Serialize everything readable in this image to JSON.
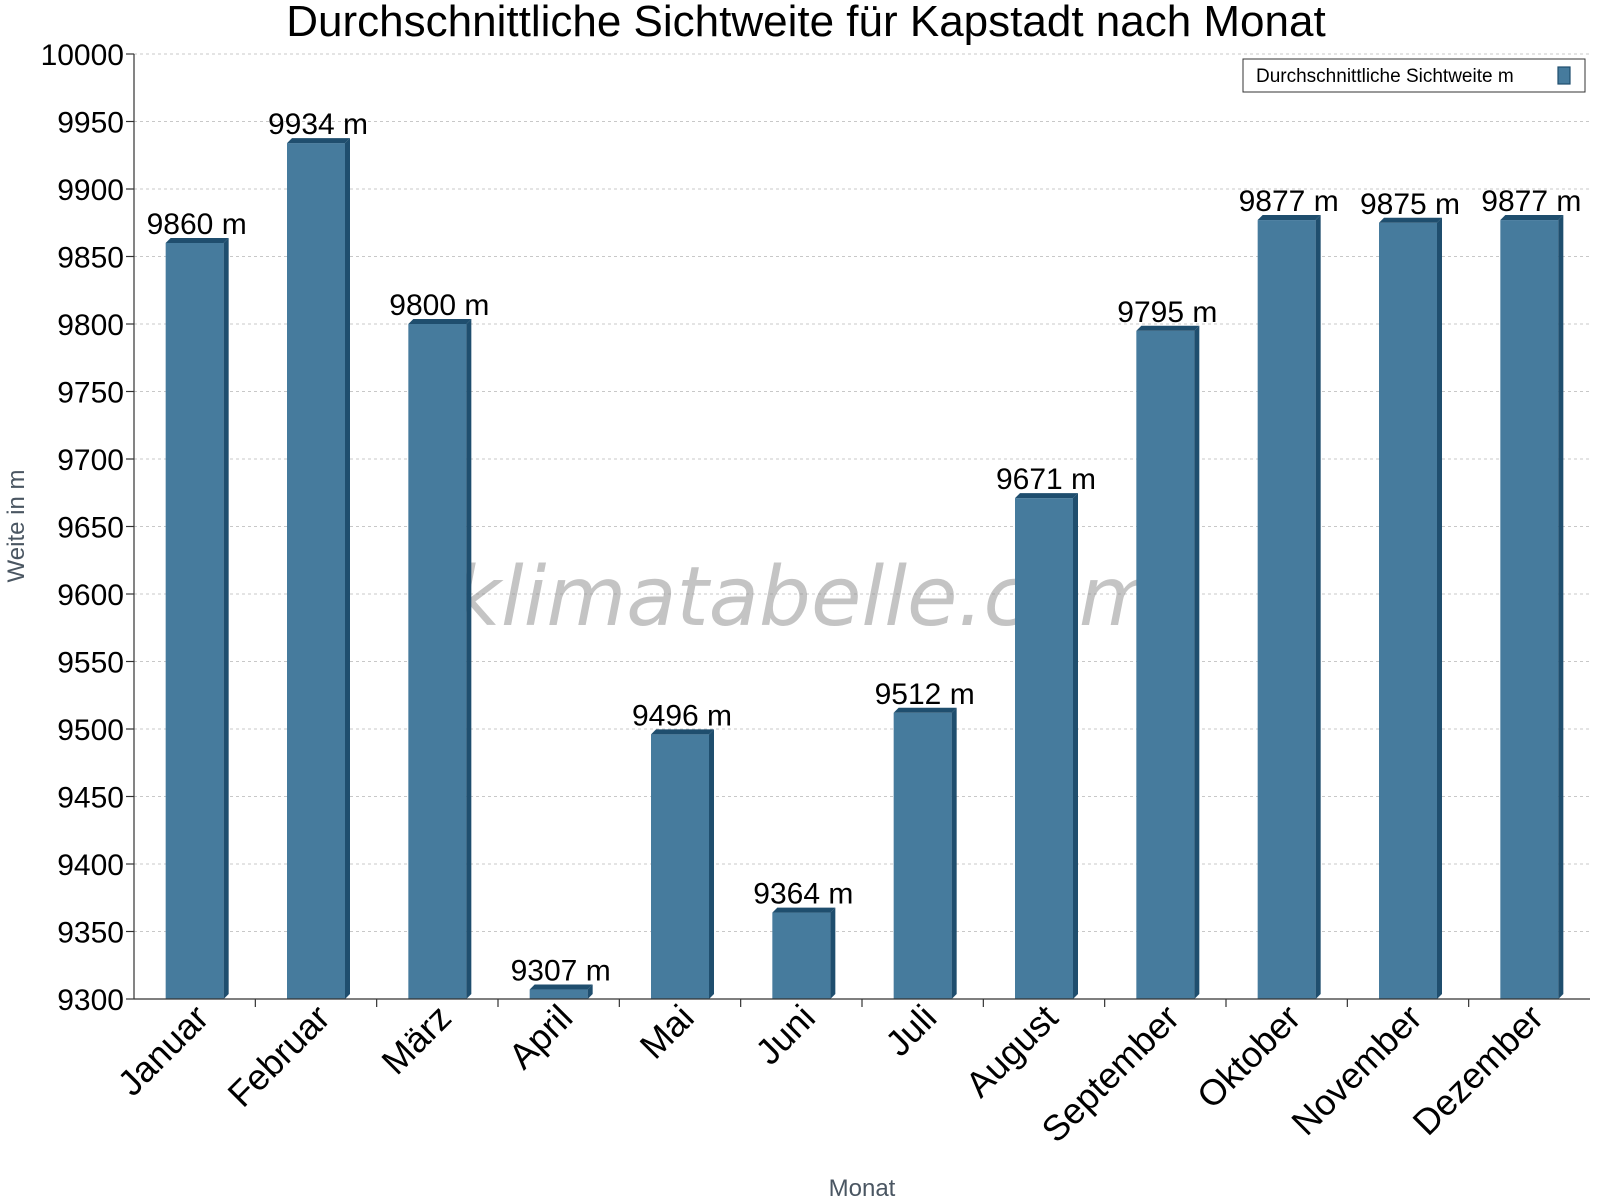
{
  "chart_data": {
    "type": "bar",
    "title": "Durchschnittliche Sichtweite für Kapstadt nach Monat",
    "xlabel": "Monat",
    "ylabel": "Weite in m",
    "categories": [
      "Januar",
      "Februar",
      "März",
      "April",
      "Mai",
      "Juni",
      "Juli",
      "August",
      "September",
      "Oktober",
      "November",
      "Dezember"
    ],
    "series": [
      {
        "name": "Durchschnittliche Sichtweite m",
        "values": [
          9860,
          9934,
          9800,
          9307,
          9496,
          9364,
          9512,
          9671,
          9795,
          9877,
          9875,
          9877
        ],
        "labels": [
          "9860 m",
          "9934 m",
          "9800 m",
          "9307 m",
          "9496 m",
          "9364 m",
          "9512 m",
          "9671 m",
          "9795 m",
          "9877 m",
          "9875 m",
          "9877 m"
        ]
      }
    ],
    "ylim": [
      9300,
      10000
    ],
    "yticks": [
      9300,
      9350,
      9400,
      9450,
      9500,
      9550,
      9600,
      9650,
      9700,
      9750,
      9800,
      9850,
      9900,
      9950,
      10000
    ],
    "grid": true,
    "legend_position": "top-right",
    "colors": {
      "bar": "#467b9d",
      "bar_side": "#1f4e6e",
      "bar_top": "#5a8db0"
    }
  },
  "watermark": "klimatabelle.com"
}
